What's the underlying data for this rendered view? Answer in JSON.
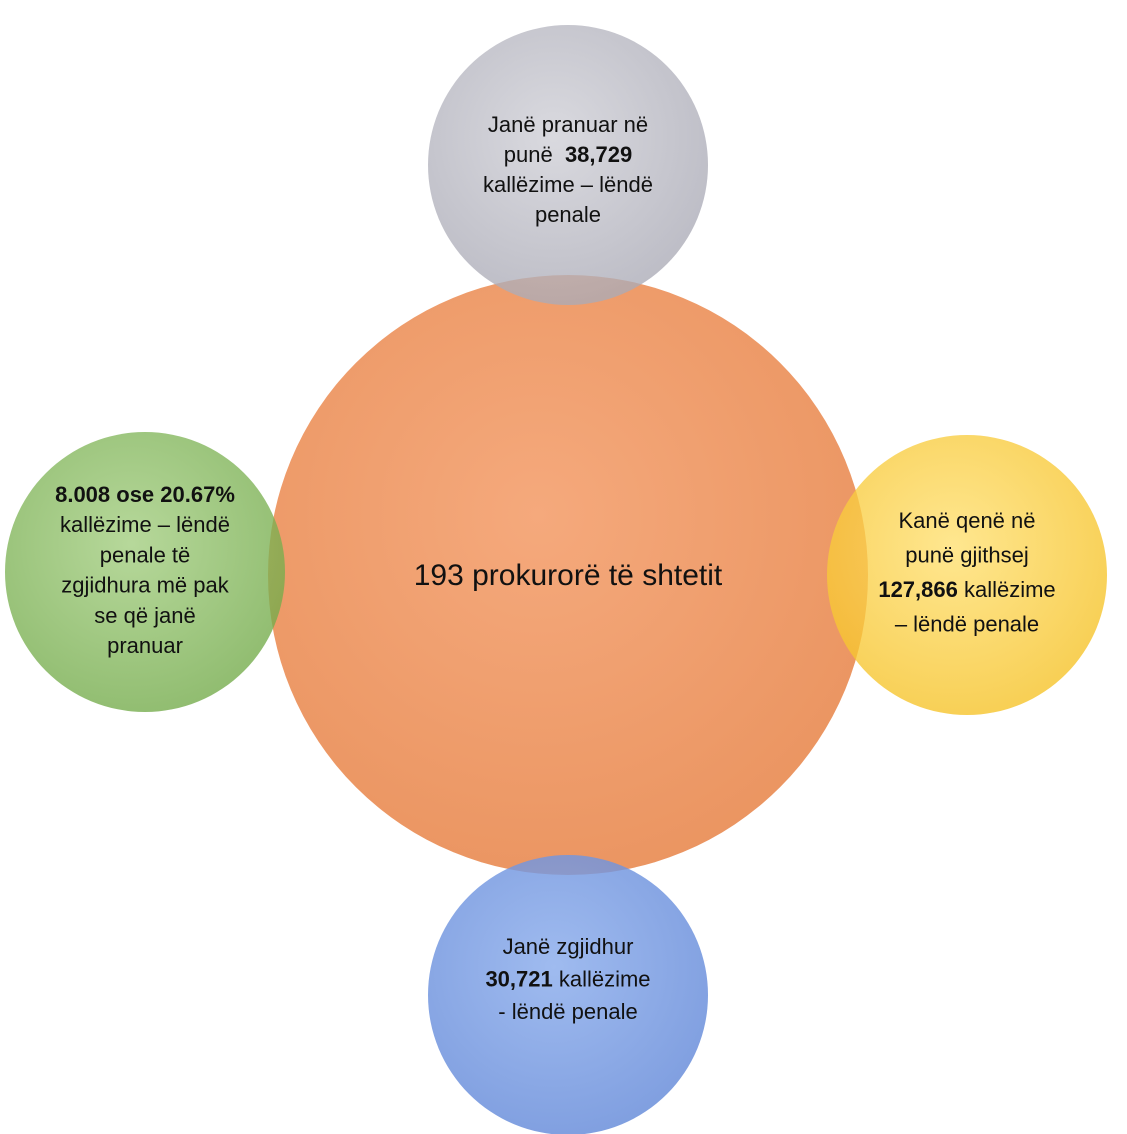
{
  "center": {
    "label": "193 prokurorë të shtetit"
  },
  "nodes": [
    {
      "lines": [
        [
          {
            "text": "Janë pranuar në"
          }
        ],
        [
          {
            "text": "punë  "
          },
          {
            "text": "38,729",
            "bold": true
          }
        ],
        [
          {
            "text": "kallëzime – lëndë"
          }
        ],
        [
          {
            "text": "penale"
          }
        ]
      ]
    },
    {
      "lines": [
        [
          {
            "text": "8.008 ose 20.67%",
            "bold": true
          }
        ],
        [
          {
            "text": "kallëzime – lëndë"
          }
        ],
        [
          {
            "text": "penale të"
          }
        ],
        [
          {
            "text": "zgjidhura më pak"
          }
        ],
        [
          {
            "text": "se që janë"
          }
        ],
        [
          {
            "text": "pranuar"
          }
        ]
      ]
    },
    {
      "lines": [
        [
          {
            "text": "Kanë qenë në"
          }
        ],
        [
          {
            "text": "punë gjithsej"
          }
        ],
        [
          {
            "text": "127,866",
            "bold": true
          },
          {
            "text": " kallëzime"
          }
        ],
        [
          {
            "text": "– lëndë penale"
          }
        ]
      ]
    },
    {
      "lines": [
        [
          {
            "text": "Janë zgjidhur"
          }
        ],
        [
          {
            "text": "30,721",
            "bold": true
          },
          {
            "text": " kallëzime"
          }
        ],
        [
          {
            "text": "- lëndë penale"
          }
        ]
      ]
    }
  ]
}
